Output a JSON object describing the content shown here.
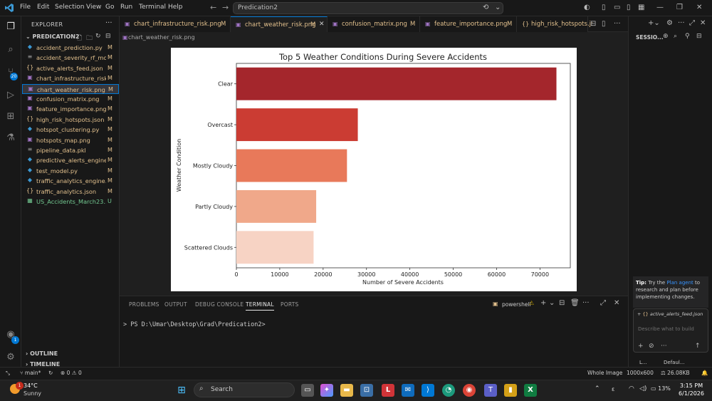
{
  "titlebar": {
    "menu": [
      "File",
      "Edit",
      "Selection",
      "View",
      "Go",
      "Run",
      "Terminal",
      "Help"
    ],
    "search_text": "Predication2"
  },
  "explorer": {
    "title": "EXPLORER",
    "project": "PREDICATION2",
    "files": [
      {
        "name": "accident_prediction.py",
        "status": "M",
        "icon": "python-icon"
      },
      {
        "name": "accident_severity_rf_mo...",
        "status": "M",
        "icon": "file-icon"
      },
      {
        "name": "active_alerts_feed.json",
        "status": "M",
        "icon": "json-icon"
      },
      {
        "name": "chart_infrastructure_risk...",
        "status": "M",
        "icon": "image-icon"
      },
      {
        "name": "chart_weather_risk.png",
        "status": "M",
        "icon": "image-icon"
      },
      {
        "name": "confusion_matrix.png",
        "status": "M",
        "icon": "image-icon"
      },
      {
        "name": "feature_importance.png",
        "status": "M",
        "icon": "image-icon"
      },
      {
        "name": "high_risk_hotspots.json",
        "status": "M",
        "icon": "json-icon"
      },
      {
        "name": "hotspot_clustering.py",
        "status": "M",
        "icon": "python-icon"
      },
      {
        "name": "hotspots_map.png",
        "status": "M",
        "icon": "image-icon"
      },
      {
        "name": "pipeline_data.pkl",
        "status": "M",
        "icon": "file-icon"
      },
      {
        "name": "predictive_alerts_engine...",
        "status": "M",
        "icon": "python-icon"
      },
      {
        "name": "test_model.py",
        "status": "M",
        "icon": "python-icon"
      },
      {
        "name": "traffic_analytics_engine...",
        "status": "M",
        "icon": "python-icon"
      },
      {
        "name": "traffic_analytics.json",
        "status": "M",
        "icon": "json-icon"
      },
      {
        "name": "US_Accidents_March23...",
        "status": "U",
        "icon": "csv-icon"
      }
    ],
    "outline": "OUTLINE",
    "timeline": "TIMELINE"
  },
  "tabs": [
    {
      "label": "chart_infrastructure_risk.png",
      "modified": "M"
    },
    {
      "label": "chart_weather_risk.png",
      "modified": "M"
    },
    {
      "label": "confusion_matrix.png",
      "modified": "M"
    },
    {
      "label": "feature_importance.png",
      "modified": "M"
    },
    {
      "label": "high_risk_hotspots.j:",
      "modified": ""
    }
  ],
  "breadcrumb": "chart_weather_risk.png",
  "chart_data": {
    "type": "bar",
    "orientation": "horizontal",
    "title": "Top 5 Weather Conditions During Severe Accidents",
    "xlabel": "Number of Severe Accidents",
    "ylabel": "Weather Condition",
    "categories": [
      "Clear",
      "Overcast",
      "Mostly Cloudy",
      "Partly Cloudy",
      "Scattered Clouds"
    ],
    "values": [
      73800,
      28000,
      25500,
      18400,
      17800
    ],
    "colors": [
      "#a4262c",
      "#cb3c33",
      "#e8795a",
      "#f0a88a",
      "#f7d3c4"
    ],
    "xlim": [
      0,
      77000
    ],
    "xticks": [
      0,
      10000,
      20000,
      30000,
      40000,
      50000,
      60000,
      70000
    ],
    "grid": false
  },
  "panel": {
    "tabs": [
      "PROBLEMS",
      "OUTPUT",
      "DEBUG CONSOLE",
      "TERMINAL",
      "PORTS"
    ],
    "active": "TERMINAL",
    "shell": "powershell",
    "prompt": "PS D:\\Umar\\Desktop\\Grad\\Predication2>"
  },
  "chat": {
    "title": "SESSIO...",
    "tip_bold": "Tip:",
    "tip_pre": "Try the",
    "tip_link": "Plan agent",
    "tip_post": "to research and plan before implementing changes.",
    "context_file": "active_alerts_feed.json",
    "placeholder": "Describe what to build",
    "mode_short": "L...",
    "model_short": "Defaul..."
  },
  "status": {
    "branch": "main*",
    "errors": "0",
    "warnings": "0",
    "view_mode": "Whole Image",
    "dimensions": "1000x600",
    "filesize": "26.08KB"
  },
  "taskbar": {
    "temp": "34°C",
    "weather": "Sunny",
    "weather_badge": "1",
    "search": "Search",
    "battery": "13%",
    "time": "3:15 PM",
    "date": "6/1/2026"
  }
}
